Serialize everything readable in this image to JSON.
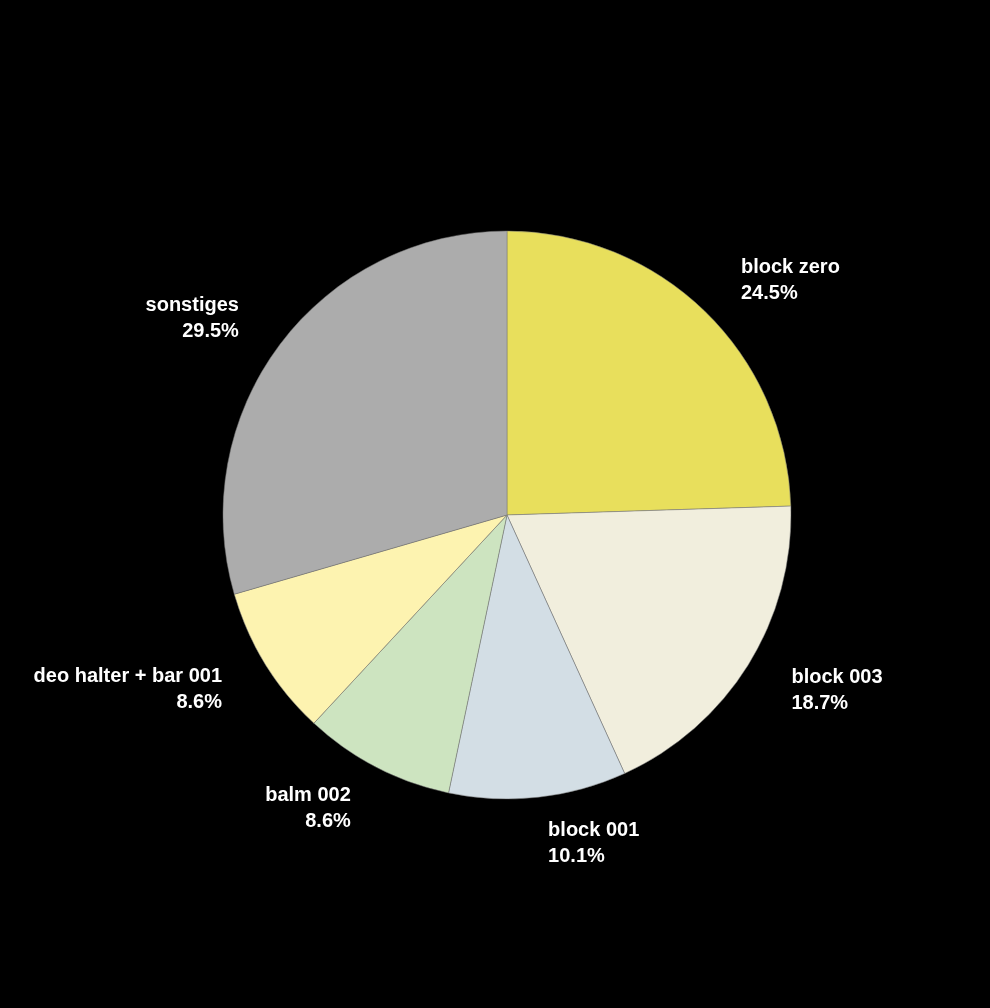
{
  "chart_data": {
    "type": "pie",
    "categories": [
      "block zero",
      "block 003",
      "block 001",
      "balm 002",
      "deo halter + bar 001",
      "sonstiges"
    ],
    "values": [
      24.5,
      18.7,
      10.1,
      8.6,
      8.6,
      29.5
    ],
    "colors": [
      "#e8df5c",
      "#f1eedd",
      "#d3dee5",
      "#cde4c0",
      "#fdf3b0",
      "#acacac"
    ],
    "value_labels": [
      "24.5%",
      "18.7%",
      "10.1%",
      "8.6%",
      "8.6%",
      "29.5%"
    ],
    "legend": false
  }
}
